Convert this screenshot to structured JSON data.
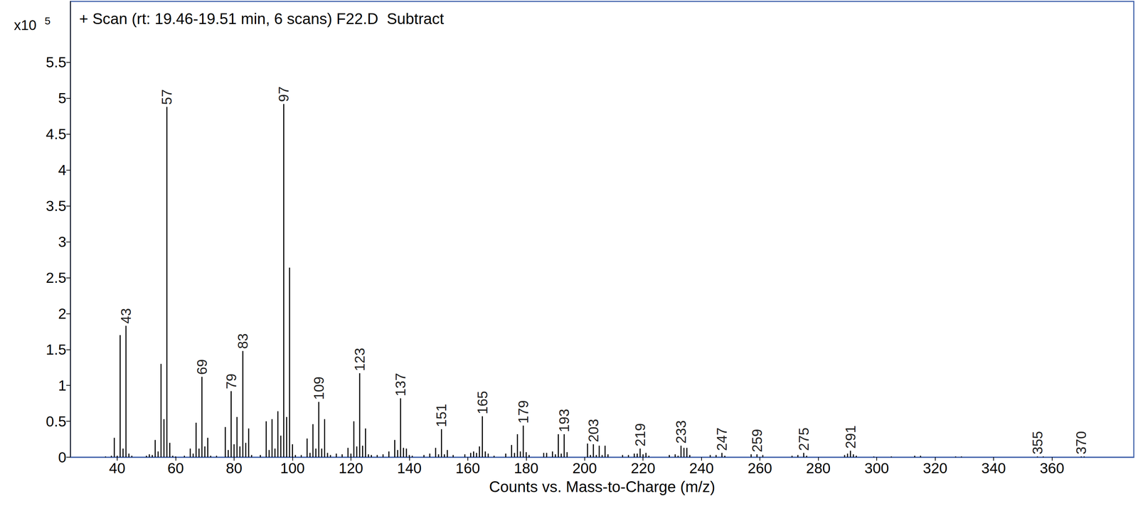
{
  "chart_data": {
    "type": "bar",
    "title": "+ Scan (rt: 19.46-19.51 min, 6 scans) F22.D  Subtract",
    "xlabel": "Counts vs. Mass-to-Charge (m/z)",
    "y_multiplier": {
      "text": "x10",
      "exponent": "5"
    },
    "color": "#000000",
    "grid": false,
    "xlim": [
      24,
      388
    ],
    "xticks": [
      40,
      60,
      80,
      100,
      120,
      140,
      160,
      180,
      200,
      220,
      240,
      260,
      280,
      300,
      320,
      340,
      360
    ],
    "ylim": [
      0,
      6.35
    ],
    "yticks": [
      0,
      0.5,
      1,
      1.5,
      2,
      2.5,
      3,
      3.5,
      4,
      4.5,
      5,
      5.5
    ],
    "annotations": [
      43,
      57,
      69,
      79,
      83,
      97,
      109,
      123,
      137,
      151,
      165,
      179,
      193,
      203,
      219,
      233,
      247,
      259,
      275,
      291,
      355,
      370
    ],
    "x": [
      36,
      38,
      39,
      40,
      41,
      42,
      43,
      44,
      45,
      50,
      51,
      52,
      53,
      54,
      55,
      56,
      57,
      58,
      59,
      60,
      63,
      65,
      66,
      67,
      68,
      69,
      70,
      71,
      72,
      74,
      77,
      78,
      79,
      80,
      81,
      82,
      83,
      84,
      85,
      86,
      89,
      91,
      92,
      93,
      94,
      95,
      96,
      97,
      98,
      99,
      100,
      101,
      103,
      105,
      106,
      107,
      108,
      109,
      110,
      111,
      112,
      113,
      115,
      117,
      119,
      120,
      121,
      122,
      123,
      124,
      125,
      126,
      127,
      129,
      131,
      133,
      135,
      136,
      137,
      138,
      139,
      140,
      141,
      145,
      147,
      149,
      150,
      151,
      152,
      153,
      155,
      159,
      161,
      162,
      163,
      164,
      165,
      166,
      167,
      169,
      173,
      175,
      176,
      177,
      178,
      179,
      180,
      181,
      186,
      187,
      189,
      190,
      191,
      192,
      193,
      194,
      201,
      202,
      203,
      204,
      205,
      206,
      207,
      208,
      213,
      215,
      217,
      218,
      219,
      220,
      221,
      222,
      229,
      231,
      232,
      233,
      234,
      235,
      236,
      243,
      245,
      247,
      248,
      257,
      259,
      261,
      271,
      273,
      275,
      276,
      289,
      290,
      291,
      292,
      293,
      299,
      305,
      313,
      315,
      327,
      329,
      355,
      357,
      370,
      371
    ],
    "values": [
      0.01,
      0.02,
      0.27,
      0.02,
      1.7,
      0.12,
      1.83,
      0.05,
      0.02,
      0.02,
      0.04,
      0.03,
      0.24,
      0.08,
      1.3,
      0.53,
      4.88,
      0.2,
      0.02,
      0.01,
      0.02,
      0.12,
      0.05,
      0.48,
      0.12,
      1.12,
      0.15,
      0.27,
      0.02,
      0.02,
      0.42,
      0.1,
      0.92,
      0.18,
      0.56,
      0.15,
      1.48,
      0.2,
      0.4,
      0.03,
      0.03,
      0.5,
      0.1,
      0.53,
      0.12,
      0.64,
      0.3,
      4.92,
      0.56,
      2.64,
      0.18,
      0.03,
      0.03,
      0.26,
      0.06,
      0.46,
      0.12,
      0.77,
      0.12,
      0.53,
      0.06,
      0.03,
      0.05,
      0.04,
      0.13,
      0.05,
      0.5,
      0.15,
      1.17,
      0.16,
      0.4,
      0.04,
      0.03,
      0.03,
      0.04,
      0.08,
      0.24,
      0.1,
      0.82,
      0.13,
      0.12,
      0.03,
      0.02,
      0.03,
      0.05,
      0.13,
      0.04,
      0.39,
      0.04,
      0.1,
      0.03,
      0.04,
      0.06,
      0.08,
      0.06,
      0.15,
      0.57,
      0.08,
      0.05,
      0.02,
      0.05,
      0.17,
      0.06,
      0.32,
      0.08,
      0.44,
      0.07,
      0.03,
      0.06,
      0.06,
      0.08,
      0.04,
      0.32,
      0.05,
      0.32,
      0.07,
      0.19,
      0.03,
      0.18,
      0.03,
      0.16,
      0.03,
      0.16,
      0.04,
      0.03,
      0.03,
      0.05,
      0.05,
      0.12,
      0.04,
      0.06,
      0.02,
      0.03,
      0.04,
      0.02,
      0.16,
      0.13,
      0.13,
      0.03,
      0.03,
      0.03,
      0.06,
      0.02,
      0.04,
      0.04,
      0.03,
      0.02,
      0.03,
      0.06,
      0.02,
      0.03,
      0.05,
      0.09,
      0.04,
      0.02,
      0.01,
      0.01,
      0.02,
      0.02,
      0.01,
      0.01,
      0.01,
      0.01,
      0.01,
      0.01
    ]
  }
}
